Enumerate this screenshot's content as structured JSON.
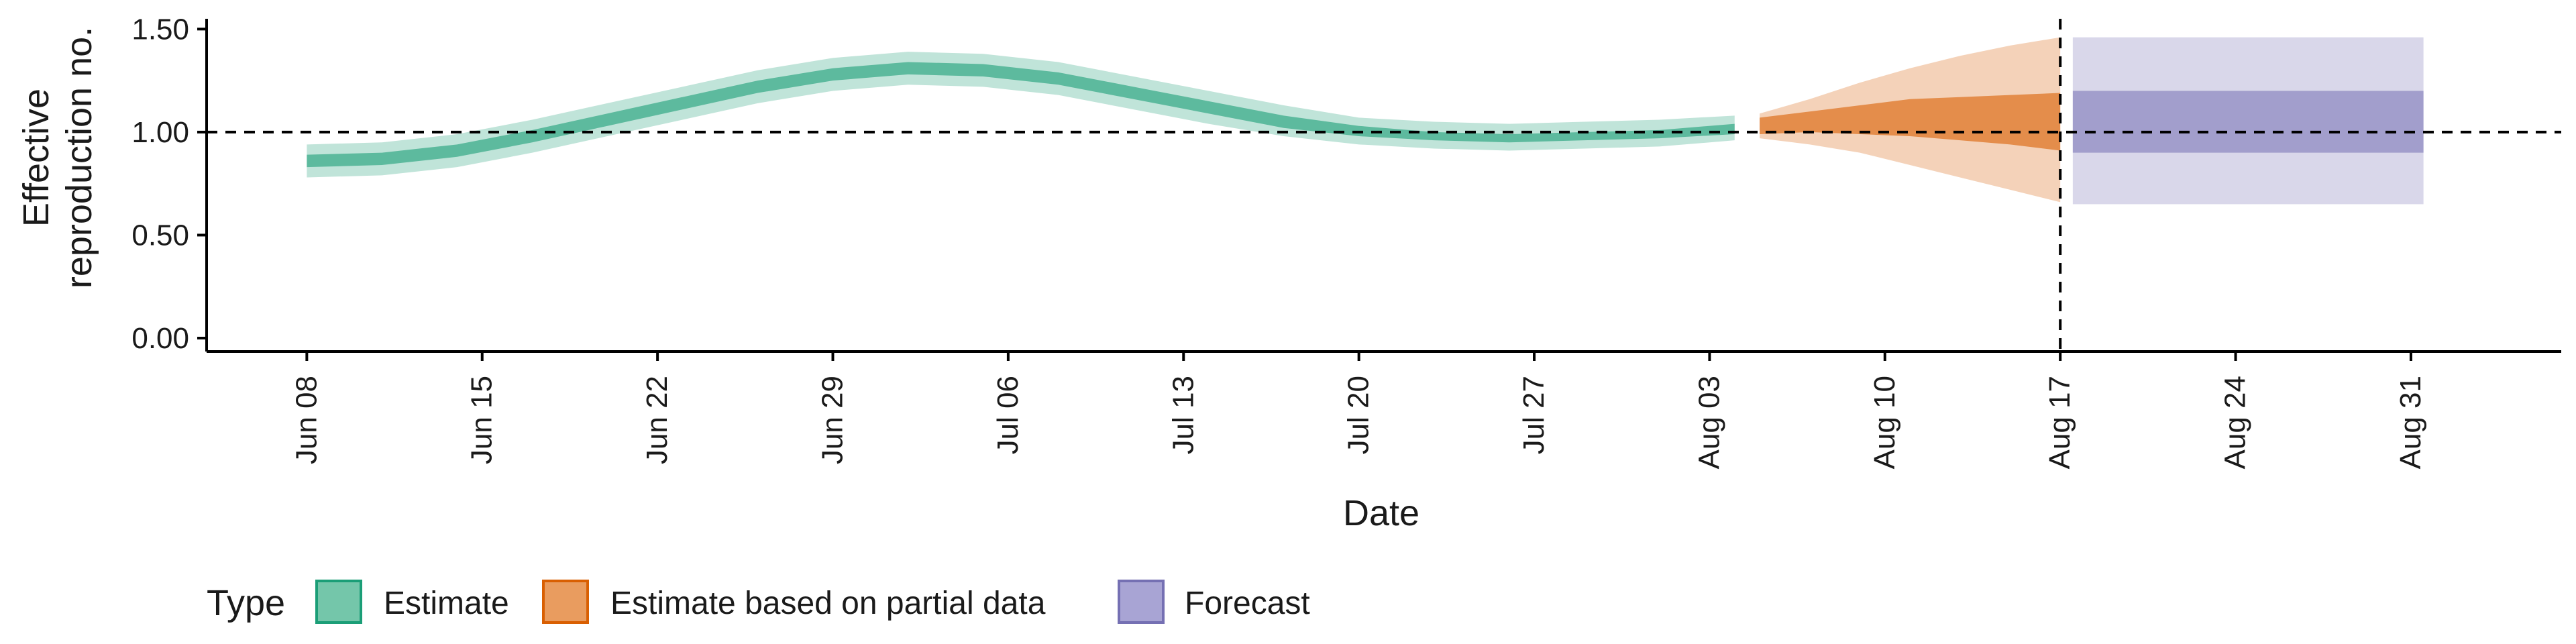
{
  "chart_data": {
    "type": "area",
    "title": "",
    "xlabel": "Date",
    "ylabel_lines": [
      "Effective",
      "reproduction no."
    ],
    "ylim": [
      0,
      1.55
    ],
    "y_ticks": [
      0,
      0.5,
      1.0,
      1.5
    ],
    "y_tick_labels": [
      "0.00",
      "0.50",
      "1.00",
      "1.50"
    ],
    "x_range": [
      "2020-06-04",
      "2020-09-06"
    ],
    "x_ticks": [
      "2020-06-08",
      "2020-06-15",
      "2020-06-22",
      "2020-06-29",
      "2020-07-06",
      "2020-07-13",
      "2020-07-20",
      "2020-07-27",
      "2020-08-03",
      "2020-08-10",
      "2020-08-17",
      "2020-08-24",
      "2020-08-31"
    ],
    "x_tick_labels": [
      "Jun 08",
      "Jun 15",
      "Jun 22",
      "Jun 29",
      "Jul 06",
      "Jul 13",
      "Jul 20",
      "Jul 27",
      "Aug 03",
      "Aug 10",
      "Aug 17",
      "Aug 24",
      "Aug 31"
    ],
    "hline": 1.0,
    "vline": "2020-08-17",
    "grid": false,
    "legend": {
      "title": "Type",
      "position": "bottom",
      "entries": [
        {
          "label": "Estimate",
          "fill": "#74c6aa",
          "border": "#1b9e77"
        },
        {
          "label": "Estimate based on partial data",
          "fill": "#e99c5f",
          "border": "#d95f02"
        },
        {
          "label": "Forecast",
          "fill": "#a8a4d4",
          "border": "#7570b3"
        }
      ]
    },
    "series": [
      {
        "name": "Estimate",
        "color": "#1b9e77",
        "x": [
          "2020-06-08",
          "2020-06-11",
          "2020-06-14",
          "2020-06-17",
          "2020-06-20",
          "2020-06-23",
          "2020-06-26",
          "2020-06-29",
          "2020-07-02",
          "2020-07-05",
          "2020-07-08",
          "2020-07-11",
          "2020-07-14",
          "2020-07-17",
          "2020-07-20",
          "2020-07-23",
          "2020-07-26",
          "2020-07-29",
          "2020-08-01",
          "2020-08-04"
        ],
        "median": [
          0.86,
          0.87,
          0.91,
          0.98,
          1.06,
          1.14,
          1.22,
          1.28,
          1.31,
          1.3,
          1.26,
          1.19,
          1.12,
          1.05,
          1.0,
          0.98,
          0.97,
          0.98,
          0.99,
          1.01
        ],
        "lower_50": [
          0.83,
          0.84,
          0.88,
          0.95,
          1.03,
          1.11,
          1.19,
          1.25,
          1.28,
          1.27,
          1.23,
          1.16,
          1.09,
          1.02,
          0.98,
          0.96,
          0.95,
          0.96,
          0.97,
          0.99
        ],
        "upper_50": [
          0.89,
          0.9,
          0.94,
          1.01,
          1.09,
          1.17,
          1.25,
          1.31,
          1.34,
          1.33,
          1.29,
          1.22,
          1.15,
          1.08,
          1.03,
          1.0,
          0.99,
          1.0,
          1.01,
          1.04
        ],
        "lower_90": [
          0.78,
          0.79,
          0.83,
          0.9,
          0.98,
          1.06,
          1.14,
          1.2,
          1.23,
          1.22,
          1.18,
          1.11,
          1.04,
          0.98,
          0.94,
          0.92,
          0.91,
          0.92,
          0.93,
          0.96
        ],
        "upper_90": [
          0.94,
          0.95,
          0.99,
          1.06,
          1.14,
          1.22,
          1.3,
          1.36,
          1.39,
          1.38,
          1.34,
          1.27,
          1.2,
          1.13,
          1.07,
          1.05,
          1.04,
          1.05,
          1.06,
          1.08
        ]
      },
      {
        "name": "Estimate based on partial data",
        "color": "#d95f02",
        "x": [
          "2020-08-05",
          "2020-08-07",
          "2020-08-09",
          "2020-08-11",
          "2020-08-13",
          "2020-08-15",
          "2020-08-17"
        ],
        "median": [
          1.03,
          1.05,
          1.07,
          1.09,
          1.08,
          1.07,
          1.05
        ],
        "lower_50": [
          0.99,
          1.0,
          0.99,
          0.98,
          0.96,
          0.94,
          0.91
        ],
        "upper_50": [
          1.07,
          1.1,
          1.13,
          1.16,
          1.17,
          1.18,
          1.19
        ],
        "lower_90": [
          0.97,
          0.94,
          0.9,
          0.84,
          0.78,
          0.72,
          0.66
        ],
        "upper_90": [
          1.09,
          1.16,
          1.24,
          1.31,
          1.37,
          1.42,
          1.46
        ]
      },
      {
        "name": "Forecast",
        "color": "#7570b3",
        "x": [
          "2020-08-18",
          "2020-08-31"
        ],
        "median": [
          1.05,
          1.05
        ],
        "lower_50": [
          0.9,
          0.9
        ],
        "upper_50": [
          1.2,
          1.2
        ],
        "lower_90": [
          0.65,
          0.65
        ],
        "upper_90": [
          1.46,
          1.46
        ]
      }
    ]
  }
}
